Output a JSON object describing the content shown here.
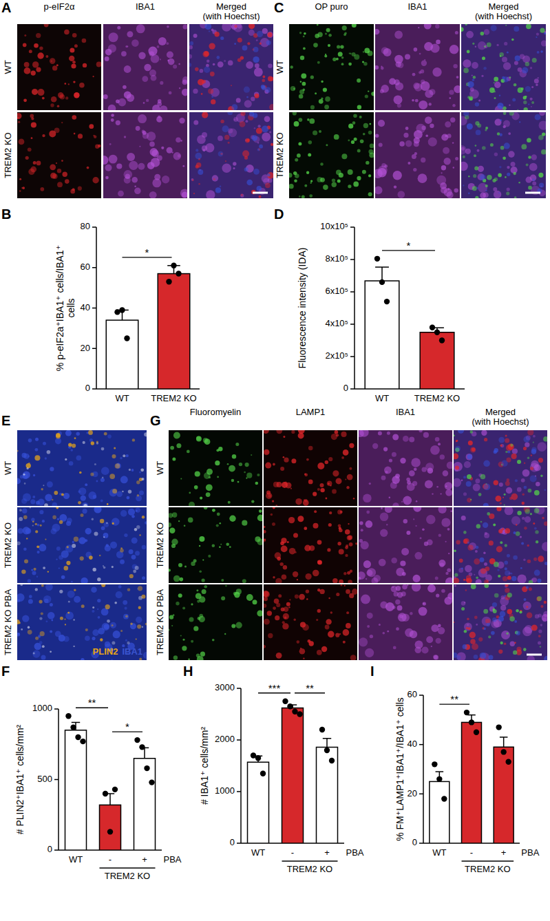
{
  "chart_data": [
    {
      "type": "bar",
      "panel": "B",
      "y_label": [
        "% p-eIF2a⁺IBA1⁺ cells/IBA1⁺",
        "cells"
      ],
      "categories": [
        "WT",
        "TREM2 KO"
      ],
      "values": [
        34,
        57
      ],
      "errors": [
        5,
        4
      ],
      "points": [
        [
          38,
          39,
          25
        ],
        [
          53,
          61,
          57
        ]
      ],
      "colors": [
        "#ffffff",
        "#d6282b"
      ],
      "ylim": [
        0,
        80
      ],
      "yticks": [
        0,
        20,
        40,
        60,
        80
      ],
      "grid": false,
      "significance": [
        {
          "from": 0,
          "to": 1,
          "label": "*"
        }
      ]
    },
    {
      "type": "bar",
      "panel": "D",
      "y_label": [
        "Fluorescence intensity (IDA)"
      ],
      "categories": [
        "WT",
        "TREM2 KO"
      ],
      "values": [
        668000,
        350000
      ],
      "errors": [
        85000,
        28000
      ],
      "points": [
        [
          805000,
          660000,
          540000
        ],
        [
          380000,
          350000,
          300000
        ]
      ],
      "colors": [
        "#ffffff",
        "#d6282b"
      ],
      "ylim": [
        0,
        1000000
      ],
      "yticks": [
        0,
        {
          "value": 200000,
          "label": "2x10⁵"
        },
        {
          "value": 400000,
          "label": "4x10⁵"
        },
        {
          "value": 600000,
          "label": "6x10⁵"
        },
        {
          "value": 800000,
          "label": "8x10⁵"
        },
        {
          "value": 1000000,
          "label": "10x10⁵"
        }
      ],
      "grid": false,
      "significance": [
        {
          "from": 0,
          "to": 1,
          "label": "*"
        }
      ]
    },
    {
      "type": "bar",
      "panel": "F",
      "y_label": [
        "# PLIN2⁺IBA1⁺ cells/mm²"
      ],
      "categories": [
        "WT",
        "-",
        "+"
      ],
      "factor_label": "PBA",
      "group": {
        "label": "TREM2 KO",
        "from": 1,
        "to": 2
      },
      "values": [
        850,
        320,
        650
      ],
      "errors": [
        55,
        80,
        75
      ],
      "points": [
        [
          950,
          870,
          800,
          770
        ],
        [
          400,
          130,
          430
        ],
        [
          780,
          730,
          580,
          480
        ]
      ],
      "colors": [
        "#ffffff",
        "#d6282b",
        "#ffffff"
      ],
      "ylim": [
        0,
        1000
      ],
      "yticks": [
        0,
        500,
        1000
      ],
      "grid": false,
      "significance": [
        {
          "from": 0,
          "to": 1,
          "label": "**"
        },
        {
          "from": 1,
          "to": 2,
          "label": "*"
        }
      ]
    },
    {
      "type": "bar",
      "panel": "H",
      "y_label": [
        "# IBA1⁺ cells/mm²"
      ],
      "categories": [
        "WT",
        "-",
        "+"
      ],
      "factor_label": "PBA",
      "group": {
        "label": "TREM2 KO",
        "from": 1,
        "to": 2
      },
      "values": [
        1570,
        2620,
        1860
      ],
      "errors": [
        120,
        60,
        170
      ],
      "points": [
        [
          1700,
          1650,
          1350
        ],
        [
          2750,
          2650,
          2550,
          2500
        ],
        [
          2200,
          1800,
          1600
        ]
      ],
      "colors": [
        "#ffffff",
        "#d6282b",
        "#ffffff"
      ],
      "ylim": [
        0,
        3000
      ],
      "yticks": [
        0,
        1000,
        2000,
        3000
      ],
      "grid": false,
      "significance": [
        {
          "from": 0,
          "to": 1,
          "label": "***"
        },
        {
          "from": 1,
          "to": 2,
          "label": "**"
        }
      ]
    },
    {
      "type": "bar",
      "panel": "I",
      "y_label": [
        "% FM⁺LAMP1⁺IBA1⁺/IBA1⁺ cells"
      ],
      "categories": [
        "WT",
        "-",
        "+"
      ],
      "factor_label": "PBA",
      "group": {
        "label": "TREM2 KO",
        "from": 1,
        "to": 2
      },
      "values": [
        25,
        49,
        39
      ],
      "errors": [
        4,
        3,
        4
      ],
      "points": [
        [
          32,
          26,
          18
        ],
        [
          53,
          49,
          45
        ],
        [
          47,
          37,
          33
        ]
      ],
      "colors": [
        "#ffffff",
        "#d6282b",
        "#d6282b"
      ],
      "ylim": [
        0,
        60
      ],
      "yticks": [
        0,
        20,
        40,
        60
      ],
      "grid": false,
      "significance": [
        {
          "from": 0,
          "to": 1,
          "label": "**"
        }
      ]
    }
  ],
  "image_panels": [
    {
      "panel": "A",
      "columns": [
        [
          "p-eIF2α"
        ],
        [
          "IBA1"
        ],
        [
          "Merged",
          "(with Hoechst)"
        ]
      ],
      "rows": [
        "WT",
        "TREM2 KO"
      ]
    },
    {
      "panel": "C",
      "columns": [
        [
          "OP puro"
        ],
        [
          "IBA1"
        ],
        [
          "Merged",
          "(with Hoechst)"
        ]
      ],
      "rows": [
        "WT",
        "TREM2 KO"
      ]
    },
    {
      "panel": "E",
      "columns": [],
      "rows": [
        "WT",
        "TREM2 KO",
        "TREM2 KO PBA"
      ],
      "legend": [
        {
          "label": "PLIN2",
          "color": "#e8a51a"
        },
        {
          "label": "IBA1",
          "color": "#3a55d0"
        }
      ]
    },
    {
      "panel": "G",
      "columns": [
        [
          "Fluoromyelin"
        ],
        [
          "LAMP1"
        ],
        [
          "IBA1"
        ],
        [
          "Merged",
          "(with Hoechst)"
        ]
      ],
      "rows": [
        "WT",
        "TREM2 KO",
        "TREM2 KO PBA"
      ]
    }
  ]
}
